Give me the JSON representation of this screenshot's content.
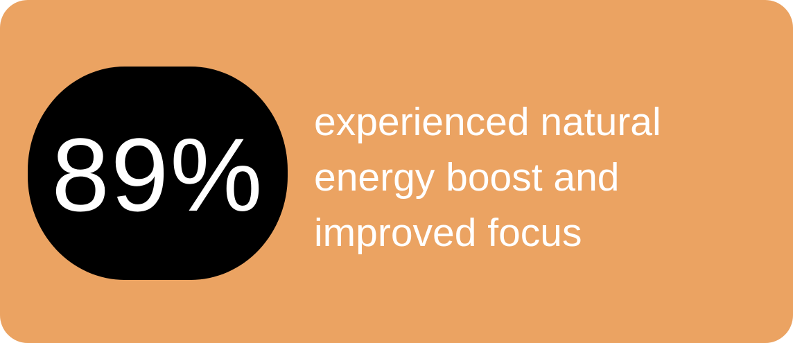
{
  "colors": {
    "background": "#EBA362",
    "pill": "#000000",
    "text": "#ffffff"
  },
  "stat": {
    "value": "89%"
  },
  "description": {
    "lines": [
      "experienced natural",
      "energy boost and",
      "improved focus"
    ]
  }
}
